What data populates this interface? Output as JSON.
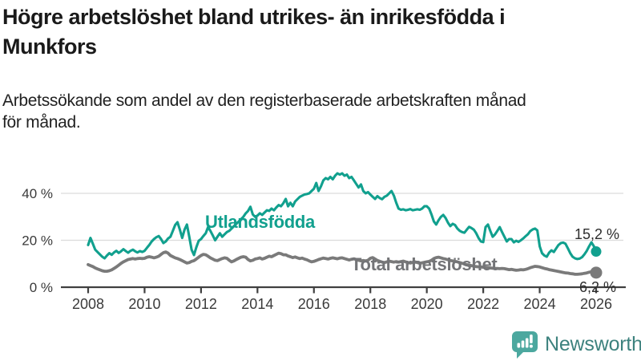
{
  "header": {
    "title_lines": [
      "Högre arbetslöshet bland utrikes- än inrikesfödda i",
      "Munkfors"
    ],
    "subtitle_lines": [
      "Arbetssökande som andel av den registerbaserade arbetskraften månad",
      "för månad."
    ]
  },
  "footer": {
    "brand": "Newsworthy",
    "logo_icon": "bar-chart-speech-bubble"
  },
  "colors": {
    "accent_teal": "#11a08e",
    "line_gray": "#7a7a7a",
    "label_gray": "#737477",
    "logo_teal": "#4CA89F",
    "logo_text_teal": "#3d827e",
    "title_text": "#1a1a1a",
    "axis": "#404040",
    "tick_label": "#3a3a3a",
    "gridline": "#dcdcdc",
    "annotation": "#2d2d2d"
  },
  "chart_data": {
    "type": "line",
    "x_unit": "month",
    "x_start": "2008-01",
    "x_end": "2026-01",
    "x_ticks": [
      2008,
      2010,
      2012,
      2014,
      2016,
      2018,
      2020,
      2022,
      2024,
      2026
    ],
    "y_ticks": [
      {
        "value": 0,
        "label": "0 %"
      },
      {
        "value": 20,
        "label": "20 %"
      },
      {
        "value": 40,
        "label": "40 %"
      }
    ],
    "ylim": [
      0,
      50
    ],
    "grid": "horizontal-light",
    "legend_position": "inline-labels",
    "series": [
      {
        "name": "Utlandsfödda",
        "color": "#11a08e",
        "end_label": "15,2 %",
        "end_value": 15.2,
        "values": [
          18.0,
          21.0,
          18.5,
          16.0,
          15.0,
          14.0,
          13.0,
          12.3,
          13.5,
          14.5,
          13.8,
          14.8,
          15.5,
          14.6,
          15.3,
          16.2,
          15.4,
          14.7,
          15.5,
          16.0,
          15.3,
          14.8,
          15.4,
          15.0,
          15.5,
          16.8,
          18.0,
          19.5,
          20.5,
          21.3,
          21.8,
          20.5,
          18.8,
          19.5,
          20.8,
          21.5,
          24.0,
          26.5,
          27.7,
          24.5,
          21.0,
          24.5,
          26.7,
          21.5,
          16.0,
          13.7,
          17.0,
          19.8,
          20.5,
          21.8,
          23.0,
          25.6,
          24.0,
          22.0,
          20.0,
          21.5,
          23.0,
          21.5,
          22.5,
          23.5,
          24.0,
          25.0,
          26.0,
          27.0,
          28.0,
          29.0,
          30.0,
          31.5,
          32.5,
          34.3,
          31.0,
          30.0,
          30.5,
          31.5,
          30.8,
          31.8,
          32.8,
          32.5,
          33.5,
          32.8,
          34.0,
          35.0,
          34.5,
          35.8,
          37.6,
          34.5,
          36.0,
          34.5,
          36.5,
          37.5,
          38.5,
          39.0,
          39.5,
          39.7,
          40.0,
          41.0,
          42.0,
          44.4,
          41.0,
          43.0,
          45.5,
          46.5,
          46.0,
          47.0,
          46.0,
          47.5,
          48.5,
          48.0,
          48.5,
          47.5,
          48.0,
          46.5,
          47.0,
          45.5,
          44.0,
          42.5,
          43.8,
          41.0,
          40.0,
          40.5,
          39.5,
          38.5,
          37.6,
          38.8,
          38.0,
          37.5,
          38.5,
          39.0,
          40.0,
          41.0,
          39.0,
          36.0,
          33.5,
          33.0,
          33.2,
          32.8,
          33.0,
          33.3,
          32.8,
          33.0,
          33.2,
          33.0,
          33.5,
          34.5,
          34.5,
          33.5,
          31.0,
          28.0,
          26.7,
          28.5,
          30.0,
          30.8,
          29.5,
          27.5,
          26.0,
          27.0,
          26.5,
          25.0,
          24.0,
          23.5,
          23.2,
          24.5,
          25.7,
          25.2,
          24.5,
          23.0,
          21.0,
          19.5,
          19.2,
          25.6,
          26.7,
          24.0,
          21.5,
          22.5,
          24.0,
          25.6,
          23.5,
          21.5,
          19.5,
          20.5,
          20.5,
          19.1,
          19.8,
          19.3,
          20.0,
          20.8,
          21.7,
          22.6,
          23.9,
          24.6,
          25.0,
          24.2,
          17.4,
          14.5,
          13.5,
          13.0,
          14.7,
          15.7,
          15.0,
          16.5,
          18.0,
          18.8,
          19.0,
          18.5,
          16.5,
          14.5,
          13.0,
          12.3,
          12.0,
          12.2,
          12.8,
          14.0,
          15.5,
          17.4,
          19.1,
          17.5,
          15.2
        ]
      },
      {
        "name": "Total arbetslöshet",
        "color": "#7a7a7a",
        "end_label": "6,2 %",
        "end_value": 6.2,
        "values": [
          9.6,
          9.2,
          8.8,
          8.2,
          7.8,
          7.4,
          7.0,
          6.8,
          6.8,
          7.0,
          7.4,
          8.0,
          8.6,
          9.4,
          10.2,
          10.8,
          11.3,
          11.8,
          12.0,
          12.2,
          12.0,
          12.2,
          12.3,
          12.2,
          12.3,
          12.8,
          13.0,
          12.8,
          12.5,
          12.8,
          13.2,
          14.0,
          14.7,
          15.0,
          14.5,
          13.5,
          13.0,
          12.5,
          12.2,
          11.8,
          11.3,
          10.8,
          10.3,
          10.5,
          11.0,
          11.3,
          12.0,
          12.8,
          13.5,
          14.0,
          13.8,
          13.2,
          12.5,
          12.0,
          11.5,
          11.3,
          11.8,
          12.2,
          12.5,
          12.3,
          11.5,
          10.8,
          11.2,
          11.8,
          12.3,
          12.8,
          13.0,
          12.8,
          11.8,
          11.2,
          11.5,
          12.0,
          12.2,
          12.5,
          12.0,
          12.3,
          12.8,
          13.2,
          13.0,
          13.5,
          14.0,
          14.5,
          14.3,
          13.8,
          13.8,
          13.3,
          13.0,
          12.6,
          12.9,
          12.5,
          12.2,
          12.4,
          12.0,
          11.7,
          11.2,
          10.8,
          11.0,
          11.4,
          11.8,
          12.1,
          12.4,
          12.2,
          12.0,
          12.3,
          12.5,
          12.3,
          12.1,
          12.4,
          12.5,
          12.2,
          11.9,
          11.6,
          11.9,
          12.1,
          11.8,
          11.5,
          11.2,
          11.4,
          11.2,
          11.5,
          12.3,
          12.6,
          12.0,
          11.4,
          11.0,
          10.7,
          10.5,
          10.8,
          11.1,
          10.9,
          10.7,
          10.9,
          10.7,
          10.9,
          11.1,
          10.8,
          10.5,
          10.3,
          10.6,
          10.8,
          10.5,
          10.2,
          10.4,
          10.6,
          10.8,
          11.0,
          11.5,
          12.2,
          12.6,
          12.8,
          12.5,
          12.2,
          12.0,
          11.7,
          11.4,
          11.2,
          11.0,
          10.8,
          10.5,
          10.2,
          9.9,
          9.6,
          9.4,
          9.2,
          9.0,
          8.8,
          8.7,
          8.6,
          8.5,
          8.4,
          8.3,
          8.2,
          8.1,
          8.0,
          8.0,
          7.9,
          8.0,
          7.9,
          7.7,
          7.5,
          7.6,
          7.4,
          7.2,
          7.3,
          7.5,
          7.4,
          7.6,
          7.9,
          8.3,
          8.6,
          8.9,
          8.8,
          8.6,
          8.3,
          8.0,
          7.8,
          7.5,
          7.3,
          7.1,
          6.9,
          6.7,
          6.5,
          6.3,
          6.1,
          6.0,
          5.8,
          5.7,
          5.5,
          5.5,
          5.6,
          5.7,
          5.9,
          6.1,
          6.4,
          6.6,
          6.5,
          6.2
        ]
      }
    ]
  }
}
